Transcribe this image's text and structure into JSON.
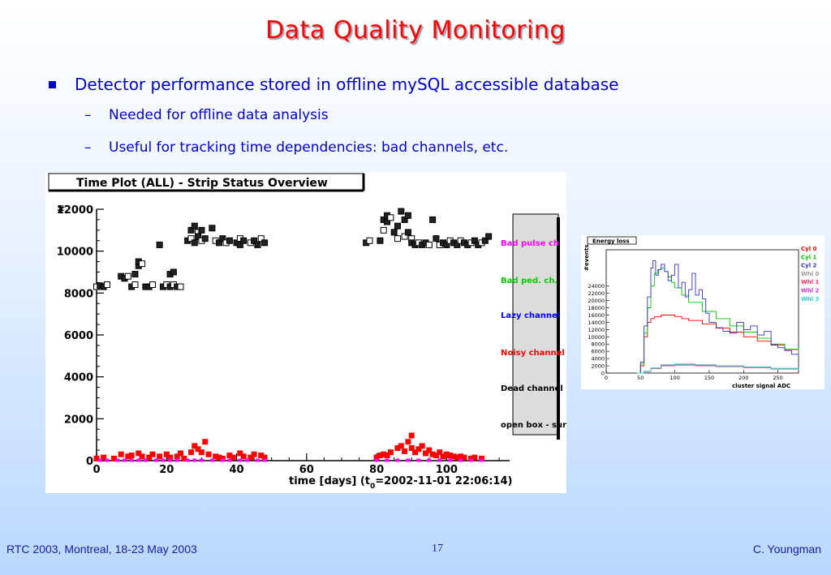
{
  "slide": {
    "title": "Data Quality Monitoring",
    "bullet": "Detector performance stored in offline mySQL accessible database",
    "subbullets": [
      "Needed for offline data analysis",
      "Useful for tracking time dependencies: bad channels, etc."
    ],
    "dash": "–"
  },
  "footer": {
    "left": "RTC 2003, Montreal, 18-23 May 2003",
    "page": "17",
    "right": "C. Youngman"
  },
  "colors": {
    "title": "#ff0000",
    "text": "#0000cc",
    "footer": "#1a1aa6"
  },
  "chart_data": [
    {
      "type": "scatter",
      "title": "Time Plot (ALL) - Strip Status Overview",
      "xlabel": "time [days] (t",
      "xlabel_sub": "0",
      "xlabel_tail": "=2002-11-01 22:06:14)",
      "ylabel": "#",
      "xlim": [
        0,
        118
      ],
      "ylim": [
        0,
        12000
      ],
      "xticks": [
        "0",
        "20",
        "40",
        "60",
        "80",
        "100"
      ],
      "yticks": [
        "0",
        "2000",
        "4000",
        "6000",
        "8000",
        "10000",
        "12000"
      ],
      "legend": [
        "Bad pulse  ch",
        "Bad ped. ch.",
        "Lazy channel",
        "Noisy channel",
        "Dead  channel",
        "open box - sur"
      ],
      "legend_colors": [
        "#ff00ff",
        "#00cc00",
        "#0000ff",
        "#ff0000",
        "#000000",
        "#000000"
      ],
      "legend_placement": "right",
      "series": [
        {
          "name": "open box - sur",
          "color": "#000000",
          "points": [
            [
              0,
              8300
            ],
            [
              1,
              8350
            ],
            [
              2,
              8300
            ],
            [
              3,
              8400
            ],
            [
              7,
              8800
            ],
            [
              8,
              8700
            ],
            [
              9,
              8800
            ],
            [
              10,
              8300
            ],
            [
              11,
              8900
            ],
            [
              11,
              8400
            ],
            [
              12,
              9300
            ],
            [
              12,
              9500
            ],
            [
              13,
              9400
            ],
            [
              14,
              8300
            ],
            [
              15,
              8300
            ],
            [
              16,
              8400
            ],
            [
              18,
              10300
            ],
            [
              19,
              8300
            ],
            [
              20,
              8400
            ],
            [
              21,
              8300
            ],
            [
              21,
              8900
            ],
            [
              22,
              8400
            ],
            [
              22,
              9000
            ],
            [
              23,
              8300
            ],
            [
              24,
              8300
            ],
            [
              26,
              10500
            ],
            [
              27,
              11000
            ],
            [
              27,
              10600
            ],
            [
              28,
              11200
            ],
            [
              28,
              10400
            ],
            [
              29,
              10900
            ],
            [
              29,
              10700
            ],
            [
              30,
              11000
            ],
            [
              30,
              10500
            ],
            [
              31,
              10600
            ],
            [
              33,
              11100
            ],
            [
              34,
              10500
            ],
            [
              35,
              10400
            ],
            [
              36,
              10600
            ],
            [
              37,
              10400
            ],
            [
              38,
              10500
            ],
            [
              40,
              10400
            ],
            [
              41,
              10600
            ],
            [
              41,
              10300
            ],
            [
              42,
              10500
            ],
            [
              44,
              10400
            ],
            [
              45,
              10500
            ],
            [
              46,
              10300
            ],
            [
              47,
              10600
            ],
            [
              48,
              10400
            ],
            [
              77,
              10400
            ],
            [
              78,
              10500
            ],
            [
              81,
              10500
            ],
            [
              82,
              11500
            ],
            [
              82,
              11000
            ],
            [
              83,
              11700
            ],
            [
              83,
              11400
            ],
            [
              84,
              11600
            ],
            [
              85,
              10900
            ],
            [
              86,
              11200
            ],
            [
              86,
              10600
            ],
            [
              87,
              11900
            ],
            [
              88,
              11500
            ],
            [
              88,
              10700
            ],
            [
              89,
              11700
            ],
            [
              89,
              10900
            ],
            [
              90,
              10600
            ],
            [
              90,
              10400
            ],
            [
              91,
              10300
            ],
            [
              92,
              10400
            ],
            [
              93,
              10300
            ],
            [
              94,
              10400
            ],
            [
              95,
              10300
            ],
            [
              96,
              11500
            ],
            [
              97,
              10600
            ],
            [
              98,
              10300
            ],
            [
              99,
              10400
            ],
            [
              100,
              10300
            ],
            [
              101,
              10500
            ],
            [
              102,
              10400
            ],
            [
              103,
              10300
            ],
            [
              104,
              10500
            ],
            [
              105,
              10400
            ],
            [
              106,
              10300
            ],
            [
              107,
              10400
            ],
            [
              108,
              10500
            ],
            [
              109,
              10300
            ],
            [
              110,
              10400
            ],
            [
              111,
              10500
            ],
            [
              112,
              10700
            ]
          ]
        },
        {
          "name": "Noisy channel",
          "color": "#ff0000",
          "points": [
            [
              0,
              100
            ],
            [
              2,
              150
            ],
            [
              5,
              100
            ],
            [
              7,
              300
            ],
            [
              9,
              200
            ],
            [
              10,
              250
            ],
            [
              12,
              350
            ],
            [
              13,
              200
            ],
            [
              15,
              150
            ],
            [
              16,
              300
            ],
            [
              18,
              200
            ],
            [
              20,
              300
            ],
            [
              21,
              150
            ],
            [
              23,
              200
            ],
            [
              24,
              350
            ],
            [
              25,
              100
            ],
            [
              27,
              400
            ],
            [
              28,
              700
            ],
            [
              29,
              550
            ],
            [
              30,
              400
            ],
            [
              31,
              900
            ],
            [
              32,
              300
            ],
            [
              34,
              200
            ],
            [
              35,
              150
            ],
            [
              36,
              100
            ],
            [
              38,
              250
            ],
            [
              39,
              150
            ],
            [
              41,
              350
            ],
            [
              42,
              200
            ],
            [
              44,
              150
            ],
            [
              45,
              300
            ],
            [
              47,
              250
            ],
            [
              48,
              150
            ],
            [
              80,
              150
            ],
            [
              81,
              250
            ],
            [
              82,
              300
            ],
            [
              83,
              250
            ],
            [
              84,
              400
            ],
            [
              86,
              600
            ],
            [
              87,
              700
            ],
            [
              88,
              450
            ],
            [
              89,
              900
            ],
            [
              90,
              1200
            ],
            [
              90,
              600
            ],
            [
              91,
              400
            ],
            [
              92,
              550
            ],
            [
              93,
              700
            ],
            [
              94,
              350
            ],
            [
              95,
              500
            ],
            [
              96,
              300
            ],
            [
              97,
              250
            ],
            [
              98,
              400
            ],
            [
              99,
              200
            ],
            [
              100,
              300
            ],
            [
              101,
              250
            ],
            [
              102,
              200
            ],
            [
              103,
              150
            ],
            [
              104,
              200
            ],
            [
              105,
              150
            ],
            [
              107,
              100
            ],
            [
              108,
              150
            ],
            [
              110,
              100
            ]
          ]
        },
        {
          "name": "Bad pulse  ch",
          "color": "#ff00ff",
          "points": [
            [
              1,
              20
            ],
            [
              3,
              20
            ],
            [
              6,
              20
            ],
            [
              8,
              20
            ],
            [
              10,
              20
            ],
            [
              12,
              20
            ],
            [
              14,
              20
            ],
            [
              17,
              20
            ],
            [
              19,
              20
            ],
            [
              21,
              20
            ],
            [
              23,
              20
            ],
            [
              26,
              20
            ],
            [
              28,
              20
            ],
            [
              30,
              20
            ],
            [
              33,
              20
            ],
            [
              36,
              20
            ],
            [
              38,
              20
            ],
            [
              41,
              20
            ],
            [
              43,
              20
            ],
            [
              46,
              20
            ],
            [
              48,
              20
            ],
            [
              80,
              20
            ],
            [
              83,
              20
            ],
            [
              86,
              20
            ],
            [
              89,
              20
            ],
            [
              92,
              20
            ],
            [
              95,
              20
            ],
            [
              98,
              20
            ],
            [
              101,
              20
            ],
            [
              104,
              20
            ],
            [
              107,
              20
            ],
            [
              110,
              20
            ]
          ]
        }
      ]
    },
    {
      "type": "line",
      "title": "Energy loss",
      "xlabel": "cluster signal ADC",
      "ylabel": "#events",
      "xlim": [
        0,
        280
      ],
      "ylim": [
        0,
        34000
      ],
      "xticks": [
        "0",
        "50",
        "100",
        "150",
        "200",
        "250"
      ],
      "yticks": [
        "0",
        "2000",
        "4000",
        "6000",
        "8000",
        "10000",
        "12000",
        "14000",
        "16000",
        "18000",
        "20000",
        "22000",
        "24000"
      ],
      "legend_placement": "right",
      "series": [
        {
          "name": "Cyl 0",
          "color": "#ff0000",
          "x": [
            45,
            50,
            55,
            60,
            65,
            70,
            80,
            90,
            100,
            110,
            120,
            140,
            160,
            180,
            200,
            220,
            240,
            260,
            280
          ],
          "y": [
            0,
            2000,
            10000,
            14000,
            15000,
            15500,
            16000,
            16000,
            15600,
            15000,
            14500,
            13500,
            12400,
            11300,
            10000,
            8800,
            7700,
            6500,
            5200
          ]
        },
        {
          "name": "Cyl 1",
          "color": "#00cc00",
          "x": [
            45,
            50,
            55,
            60,
            65,
            70,
            75,
            80,
            85,
            90,
            95,
            100,
            110,
            120,
            140,
            160,
            180,
            200,
            220,
            240,
            260,
            280
          ],
          "y": [
            0,
            2500,
            11000,
            18000,
            24000,
            27500,
            28500,
            29000,
            28000,
            26500,
            25000,
            23500,
            21500,
            19500,
            17000,
            15000,
            13000,
            11300,
            9600,
            8000,
            6600,
            5300
          ]
        },
        {
          "name": "Cyl 2",
          "color": "#3333cc",
          "x": [
            45,
            50,
            55,
            60,
            65,
            68,
            72,
            76,
            80,
            85,
            90,
            95,
            100,
            105,
            110,
            115,
            120,
            125,
            130,
            135,
            140,
            145,
            150,
            160,
            170,
            180,
            190,
            200,
            210,
            220,
            230,
            240,
            250,
            260,
            270,
            280
          ],
          "y": [
            0,
            3000,
            13000,
            21000,
            29000,
            31000,
            27000,
            28500,
            30000,
            28000,
            25500,
            27000,
            30000,
            23500,
            25000,
            21000,
            23000,
            27500,
            21500,
            23000,
            20500,
            16500,
            14000,
            12500,
            11500,
            11000,
            14000,
            12000,
            13000,
            10500,
            11500,
            7800,
            7000,
            6200,
            5200,
            4500
          ]
        },
        {
          "name": "Whl 0",
          "color": "#999999",
          "x": [
            45,
            55,
            65,
            80,
            100,
            130,
            160,
            200,
            240,
            280
          ],
          "y": [
            0,
            500,
            1400,
            2300,
            2500,
            2300,
            2000,
            1700,
            1300,
            900
          ]
        },
        {
          "name": "Whl 1",
          "color": "#ff3366",
          "x": [
            45,
            55,
            65,
            80,
            100,
            130,
            160,
            200,
            240,
            280
          ],
          "y": [
            0,
            400,
            1200,
            2000,
            2200,
            2000,
            1800,
            1500,
            1100,
            800
          ]
        },
        {
          "name": "Whl 2",
          "color": "#cc33cc",
          "x": [
            45,
            55,
            65,
            80,
            100,
            130,
            160,
            200,
            240,
            280
          ],
          "y": [
            0,
            450,
            1300,
            2100,
            2300,
            2100,
            1900,
            1600,
            1200,
            850
          ]
        },
        {
          "name": "Whl 3",
          "color": "#33cccc",
          "x": [
            45,
            55,
            65,
            80,
            100,
            130,
            160,
            200,
            240,
            280
          ],
          "y": [
            0,
            500,
            1350,
            2200,
            2400,
            2200,
            1950,
            1650,
            1250,
            900
          ]
        }
      ]
    }
  ]
}
